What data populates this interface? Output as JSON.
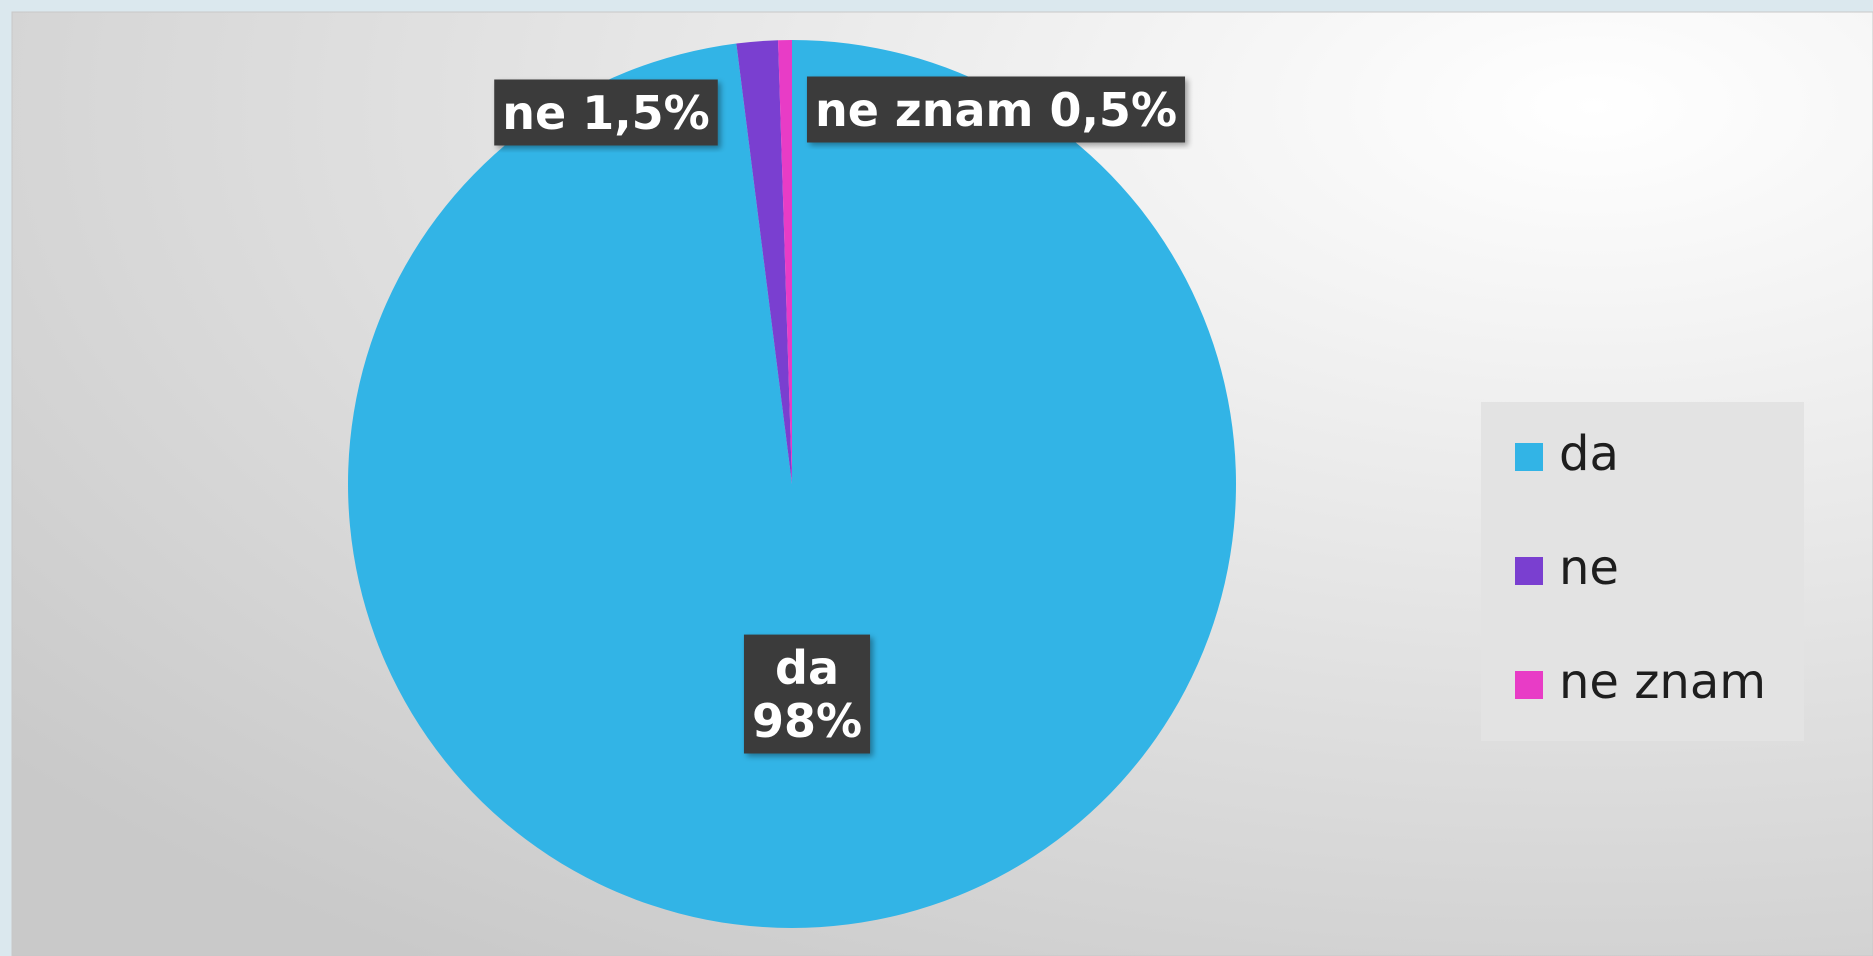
{
  "chart_data": {
    "type": "pie",
    "categories": [
      "da",
      "ne",
      "ne znam"
    ],
    "values": [
      98,
      1.5,
      0.5
    ],
    "value_labels": [
      "98%",
      "1,5%",
      "0,5%"
    ],
    "colors": [
      "#32b4e6",
      "#7a3fd0",
      "#e83cc6"
    ],
    "legend": "right"
  }
}
